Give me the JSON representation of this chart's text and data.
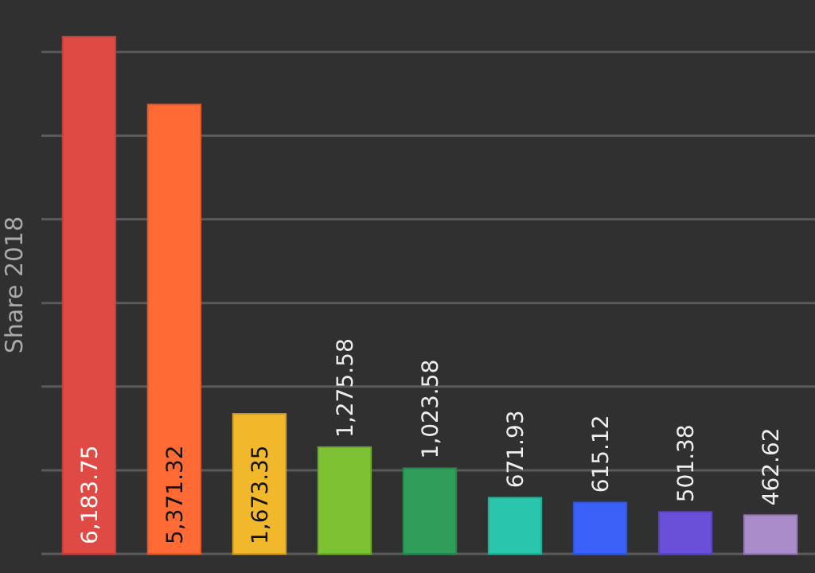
{
  "chart_data": {
    "type": "bar",
    "ylabel": "Share 2018",
    "categories": [
      null,
      null,
      null,
      null,
      null,
      null,
      null,
      null,
      null
    ],
    "values": [
      6183.75,
      5371.32,
      1673.35,
      1275.58,
      1023.58,
      671.93,
      615.12,
      501.38,
      462.62
    ],
    "value_labels": [
      "6,183.75",
      "5,371.32",
      "1,673.35",
      "1,275.58",
      "1,023.58",
      "671.93",
      "615.12",
      "501.38",
      "462.62"
    ],
    "colors": [
      "#e04a45",
      "#ff6a35",
      "#f0b82a",
      "#7cc233",
      "#2e9e5a",
      "#2ac6ab",
      "#3a62f8",
      "#6a4fd8",
      "#a98cc9"
    ],
    "yticks": [
      {
        "value": 0,
        "label": null
      },
      {
        "value": 1000,
        "label": null
      },
      {
        "value": 2000,
        "label": null
      },
      {
        "value": 3000,
        "label": null
      },
      {
        "value": 4000,
        "label": null
      },
      {
        "value": 5000,
        "label": null
      },
      {
        "value": 6000,
        "label": null
      }
    ],
    "grid": "y"
  }
}
